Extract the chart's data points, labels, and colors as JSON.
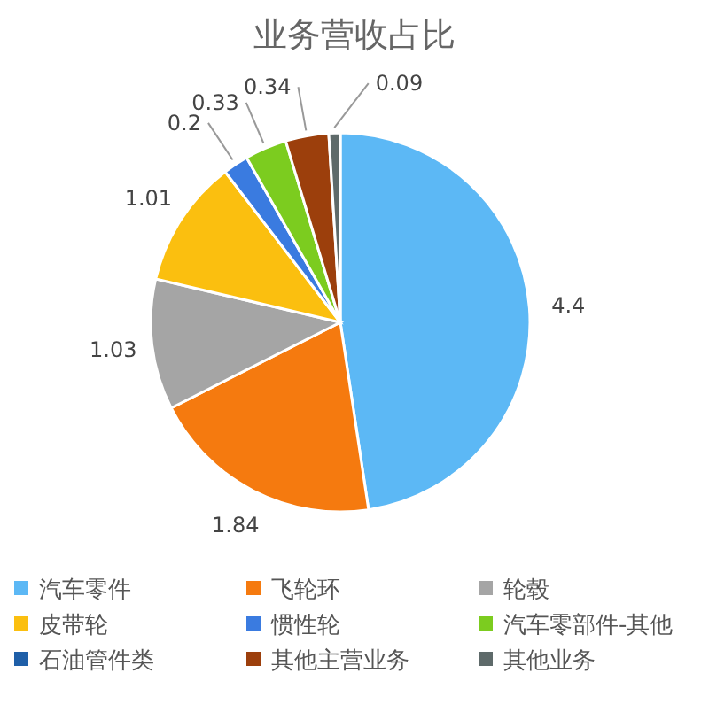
{
  "chart_data": {
    "type": "pie",
    "title": "业务营收占比",
    "categories": [
      "汽车零件",
      "飞轮环",
      "轮毂",
      "皮带轮",
      "惯性轮",
      "汽车零部件-其他",
      "石油管件类",
      "其他主营业务",
      "其他业务"
    ],
    "values": [
      4.4,
      1.84,
      1.03,
      1.01,
      0.2,
      0.33,
      0,
      0.34,
      0.09
    ],
    "value_labels": [
      "4.4",
      "1.84",
      "1.03",
      "1.01",
      "0.2",
      "0.33",
      null,
      "0.34",
      "0.09"
    ],
    "colors": [
      "#5cb8f5",
      "#f57a0f",
      "#a5a5a5",
      "#fbbf0f",
      "#3a7be0",
      "#7ccc1f",
      "#1f5fa8",
      "#9c3f0c",
      "#5e6a6a"
    ],
    "legend": "bottom"
  }
}
